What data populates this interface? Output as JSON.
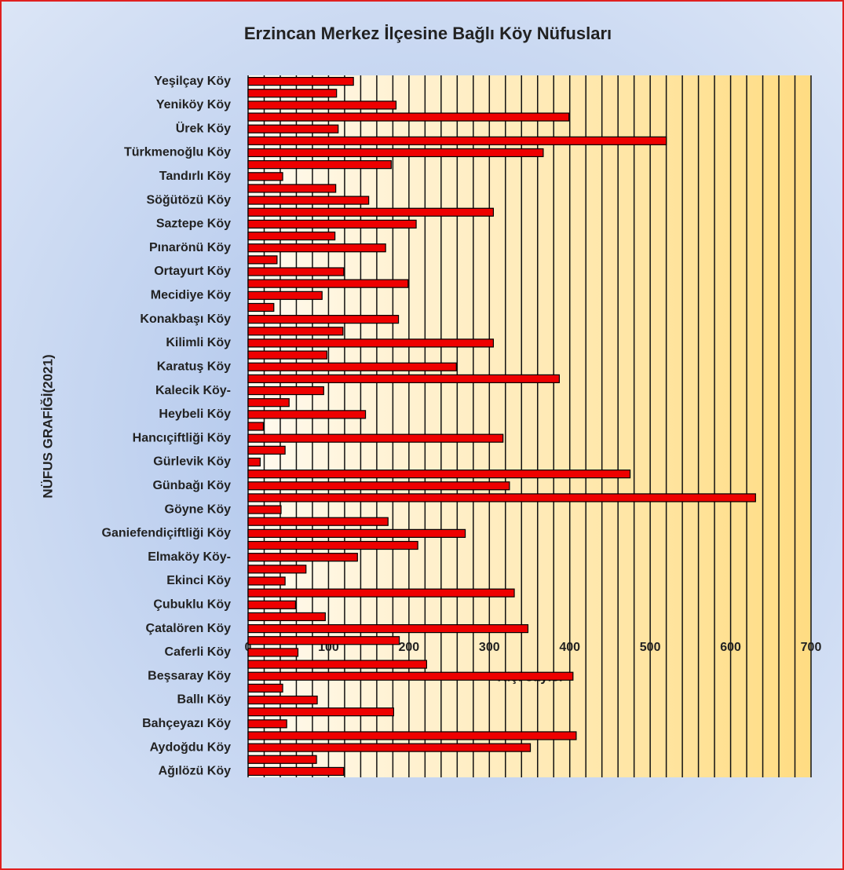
{
  "chart_data": {
    "type": "bar",
    "orientation": "horizontal",
    "title": "Erzincan Merkez İlçesine Bağlı Köy Nüfusları",
    "xlabel": "Kişi sayısı",
    "ylabel": "NÜFUS GRAFİĞİ(2021)",
    "categories": [
      "Yeşilçay Köy",
      null,
      "Yeniköy Köy",
      null,
      "Ürek Köy",
      null,
      "Türkmenoğlu Köy",
      null,
      "Tandırlı Köy",
      null,
      "Söğütözü Köy",
      null,
      "Saztepe Köy",
      null,
      "Pınarönü Köy",
      null,
      "Ortayurt Köy",
      null,
      "Mecidiye Köy",
      null,
      "Konakbaşı Köy",
      null,
      "Kilimli Köy",
      null,
      "Karatuş Köy",
      null,
      "Kalecik Köy-",
      null,
      "Heybeli Köy",
      null,
      "Hancıçiftliği Köy",
      null,
      "Gürlevik Köy",
      null,
      "Günbağı Köy",
      null,
      "Göyne Köy",
      null,
      "Ganiefendiçiftliği Köy",
      null,
      "Elmaköy Köy-",
      null,
      "Ekinci Köy",
      null,
      "Çubuklu Köy",
      null,
      "Çatalören Köy",
      null,
      "Caferli Köy",
      null,
      "Beşsaray Köy",
      null,
      "Ballı Köy",
      null,
      "Bahçeyazı Köy",
      null,
      "Aydoğdu Köy",
      null,
      "Ağılözü Köy"
    ],
    "values": [
      131,
      110,
      184,
      399,
      112,
      520,
      367,
      178,
      43,
      109,
      150,
      305,
      209,
      108,
      171,
      36,
      119,
      199,
      92,
      32,
      187,
      118,
      305,
      98,
      259,
      387,
      94,
      51,
      146,
      19,
      317,
      46,
      15,
      475,
      325,
      631,
      41,
      174,
      270,
      211,
      136,
      72,
      46,
      331,
      59,
      96,
      348,
      188,
      62,
      222,
      404,
      43,
      86,
      181,
      48,
      408,
      351,
      85,
      119
    ],
    "color": "#ee0000",
    "xlim": [
      0,
      700
    ],
    "xticks": [
      0,
      100,
      200,
      300,
      400,
      500,
      600,
      700
    ],
    "grid_lines": [
      0,
      20,
      40,
      60,
      80,
      100,
      120,
      140,
      160,
      180,
      200,
      220,
      240,
      260,
      280,
      300,
      320,
      340,
      360,
      380,
      400,
      420,
      440,
      460,
      480,
      500,
      520,
      540,
      560,
      580,
      600,
      620,
      640,
      660,
      680,
      700
    ]
  }
}
